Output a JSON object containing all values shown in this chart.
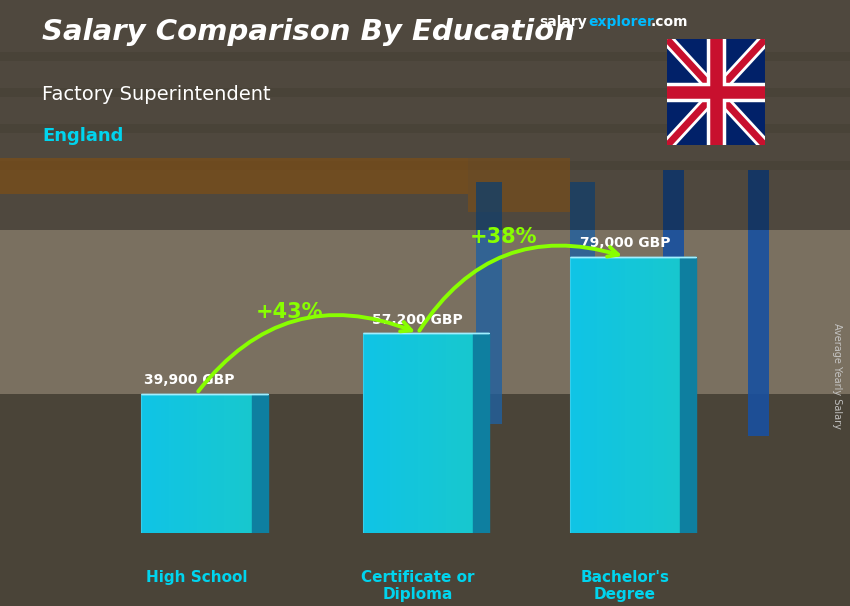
{
  "title_salary": "Salary Comparison By Education",
  "subtitle_job": "Factory Superintendent",
  "subtitle_location": "England",
  "categories": [
    "High School",
    "Certificate or\nDiploma",
    "Bachelor's\nDegree"
  ],
  "values": [
    39900,
    57200,
    79000
  ],
  "value_labels": [
    "39,900 GBP",
    "57,200 GBP",
    "79,000 GBP"
  ],
  "pct_labels": [
    "+43%",
    "+38%"
  ],
  "bar_front_color": "#1ec8e8",
  "bar_right_color": "#0e7fa0",
  "bar_top_color": "#a0eeff",
  "bg_color": "#5a5a4a",
  "title_color": "#ffffff",
  "subtitle_job_color": "#ffffff",
  "subtitle_location_color": "#00d4ee",
  "label_color": "#ffffff",
  "category_color": "#00d4ee",
  "pct_color": "#88ff00",
  "arrow_color": "#88ff00",
  "site_salary_color": "#ffffff",
  "site_explorer_color": "#00bbff",
  "site_dot_com_color": "#ffffff",
  "ylabel_color": "#cccccc",
  "ylim": [
    0,
    90000
  ],
  "bar_positions": [
    0.18,
    0.49,
    0.78
  ],
  "bar_width": 0.155,
  "bar_depth": 0.022,
  "figsize": [
    8.5,
    6.06
  ],
  "dpi": 100
}
